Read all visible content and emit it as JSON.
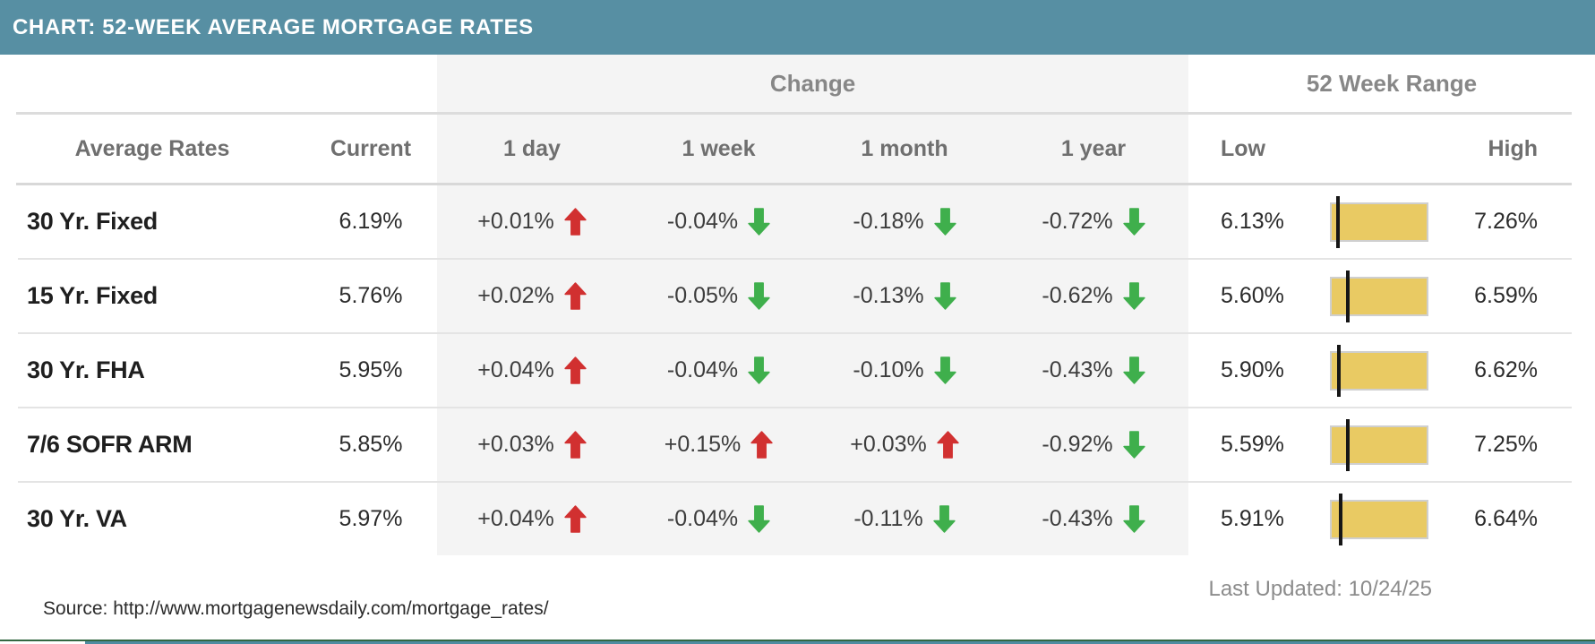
{
  "title_bar": {
    "title": "CHART: 52-WEEK AVERAGE MORTGAGE RATES"
  },
  "chart_data": {
    "type": "table",
    "title": "CHART: 52-WEEK AVERAGE MORTGAGE RATES",
    "group_columns": [
      {
        "label": "Change",
        "spans": [
          "1 day",
          "1 week",
          "1 month",
          "1 year"
        ]
      },
      {
        "label": "52 Week Range",
        "spans": [
          "Low",
          "High"
        ]
      }
    ],
    "columns": [
      "Average Rates",
      "Current",
      "1 day",
      "1 week",
      "1 month",
      "1 year",
      "Low",
      "High"
    ],
    "rows": [
      {
        "label": "30 Yr. Fixed",
        "current": "6.19%",
        "current_value": 6.19,
        "changes": [
          {
            "text": "+0.01%",
            "value": 0.01,
            "direction": "up"
          },
          {
            "text": "-0.04%",
            "value": -0.04,
            "direction": "down"
          },
          {
            "text": "-0.18%",
            "value": -0.18,
            "direction": "down"
          },
          {
            "text": "-0.72%",
            "value": -0.72,
            "direction": "down"
          }
        ],
        "low": "6.13%",
        "low_value": 6.13,
        "high": "7.26%",
        "high_value": 7.26
      },
      {
        "label": "15 Yr. Fixed",
        "current": "5.76%",
        "current_value": 5.76,
        "changes": [
          {
            "text": "+0.02%",
            "value": 0.02,
            "direction": "up"
          },
          {
            "text": "-0.05%",
            "value": -0.05,
            "direction": "down"
          },
          {
            "text": "-0.13%",
            "value": -0.13,
            "direction": "down"
          },
          {
            "text": "-0.62%",
            "value": -0.62,
            "direction": "down"
          }
        ],
        "low": "5.60%",
        "low_value": 5.6,
        "high": "6.59%",
        "high_value": 6.59
      },
      {
        "label": "30 Yr. FHA",
        "current": "5.95%",
        "current_value": 5.95,
        "changes": [
          {
            "text": "+0.04%",
            "value": 0.04,
            "direction": "up"
          },
          {
            "text": "-0.04%",
            "value": -0.04,
            "direction": "down"
          },
          {
            "text": "-0.10%",
            "value": -0.1,
            "direction": "down"
          },
          {
            "text": "-0.43%",
            "value": -0.43,
            "direction": "down"
          }
        ],
        "low": "5.90%",
        "low_value": 5.9,
        "high": "6.62%",
        "high_value": 6.62
      },
      {
        "label": "7/6 SOFR ARM",
        "current": "5.85%",
        "current_value": 5.85,
        "changes": [
          {
            "text": "+0.03%",
            "value": 0.03,
            "direction": "up"
          },
          {
            "text": "+0.15%",
            "value": 0.15,
            "direction": "up"
          },
          {
            "text": "+0.03%",
            "value": 0.03,
            "direction": "up"
          },
          {
            "text": "-0.92%",
            "value": -0.92,
            "direction": "down"
          }
        ],
        "low": "5.59%",
        "low_value": 5.59,
        "high": "7.25%",
        "high_value": 7.25
      },
      {
        "label": "30 Yr. VA",
        "current": "5.97%",
        "current_value": 5.97,
        "changes": [
          {
            "text": "+0.04%",
            "value": 0.04,
            "direction": "up"
          },
          {
            "text": "-0.04%",
            "value": -0.04,
            "direction": "down"
          },
          {
            "text": "-0.11%",
            "value": -0.11,
            "direction": "down"
          },
          {
            "text": "-0.43%",
            "value": -0.43,
            "direction": "down"
          }
        ],
        "low": "5.91%",
        "low_value": 5.91,
        "high": "6.64%",
        "high_value": 6.64
      }
    ],
    "legend_position": "none",
    "grid": "horizontal-rules"
  },
  "footer": {
    "source": "Source: http://www.mortgagenewsdaily.com/mortgage_rates/",
    "last_updated": "Last Updated: 10/24/25"
  },
  "colors": {
    "title_bar_bg": "#578fa3",
    "title_text": "#ffffff",
    "change_band_bg": "#f4f4f4",
    "up_arrow": "#d13030",
    "down_arrow": "#3faf4c",
    "range_bar_fill": "#e9ca63",
    "range_bar_border": "#cfcfcf",
    "range_marker": "#161616",
    "bottom_strip": "#4e8ca0",
    "bottom_line": "#336742"
  }
}
